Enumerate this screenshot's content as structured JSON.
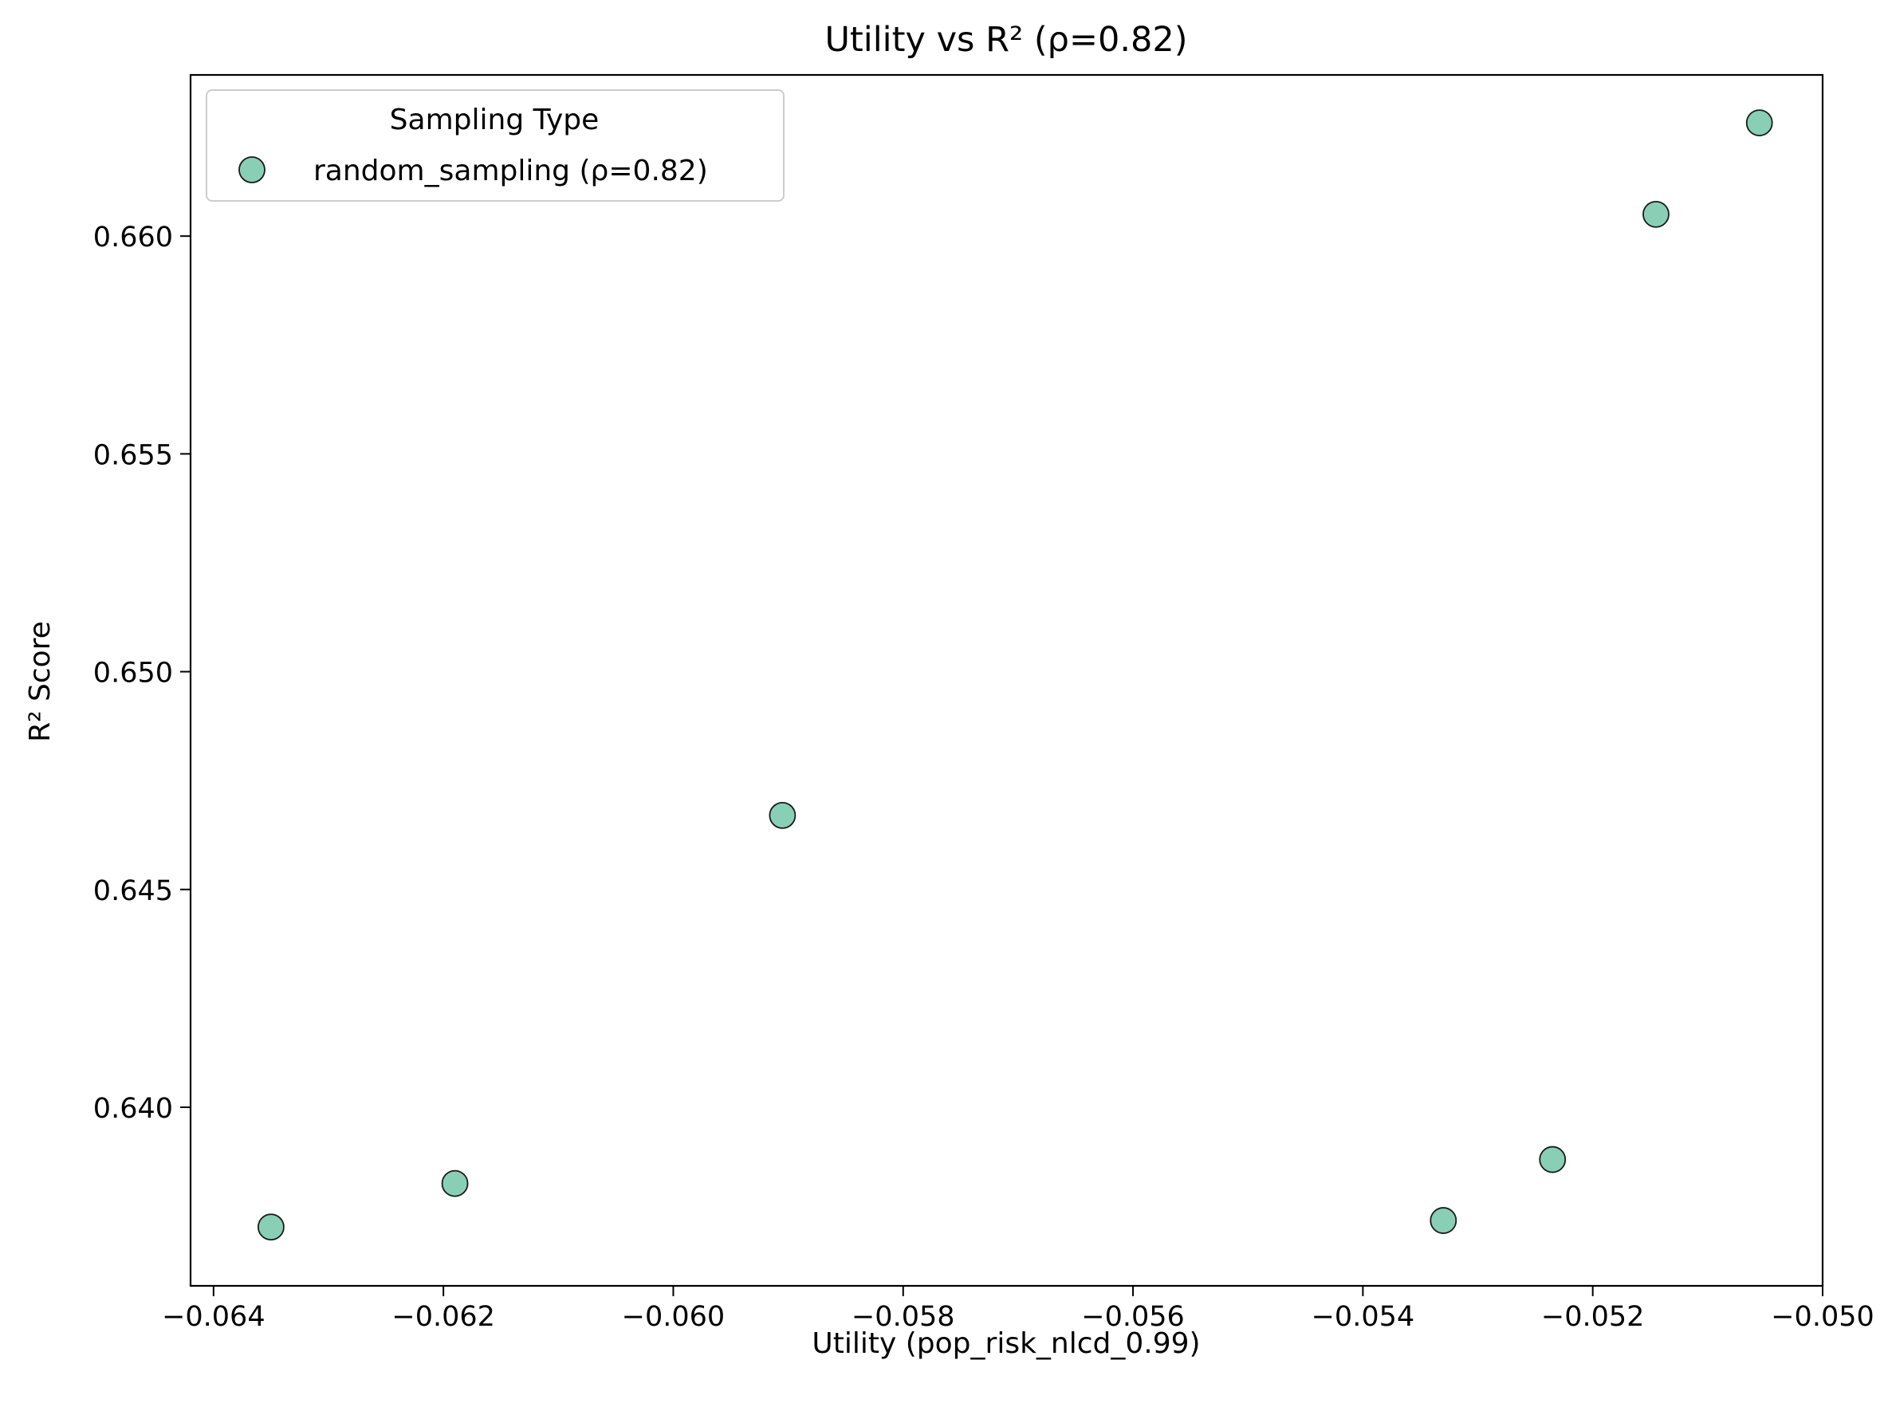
{
  "chart_data": {
    "type": "scatter",
    "title": "Utility vs R² (ρ=0.82)",
    "xlabel": "Utility (pop_risk_nlcd_0.99)",
    "ylabel": "R² Score",
    "xlim": [
      -0.0642,
      -0.05
    ],
    "ylim": [
      0.6359,
      0.6637
    ],
    "x_ticks": [
      -0.064,
      -0.062,
      -0.06,
      -0.058,
      -0.056,
      -0.054,
      -0.052,
      -0.05
    ],
    "x_tick_labels": [
      "−0.064",
      "−0.062",
      "−0.060",
      "−0.058",
      "−0.056",
      "−0.054",
      "−0.052",
      "−0.050"
    ],
    "y_ticks": [
      0.64,
      0.645,
      0.65,
      0.655,
      0.66
    ],
    "y_tick_labels": [
      "0.640",
      "0.645",
      "0.650",
      "0.655",
      "0.660"
    ],
    "grid": false,
    "legend": {
      "title": "Sampling Type",
      "placement": "top-left"
    },
    "series": [
      {
        "name": "random_sampling (ρ=0.82)",
        "color": "#88cfb6",
        "edge_color": "#1a1a1a",
        "points": [
          {
            "x": -0.0635,
            "y": 0.63725
          },
          {
            "x": -0.0619,
            "y": 0.63825
          },
          {
            "x": -0.05905,
            "y": 0.6467
          },
          {
            "x": -0.0533,
            "y": 0.6374
          },
          {
            "x": -0.05235,
            "y": 0.6388
          },
          {
            "x": -0.05145,
            "y": 0.6605
          },
          {
            "x": -0.05055,
            "y": 0.6626
          }
        ]
      }
    ]
  }
}
